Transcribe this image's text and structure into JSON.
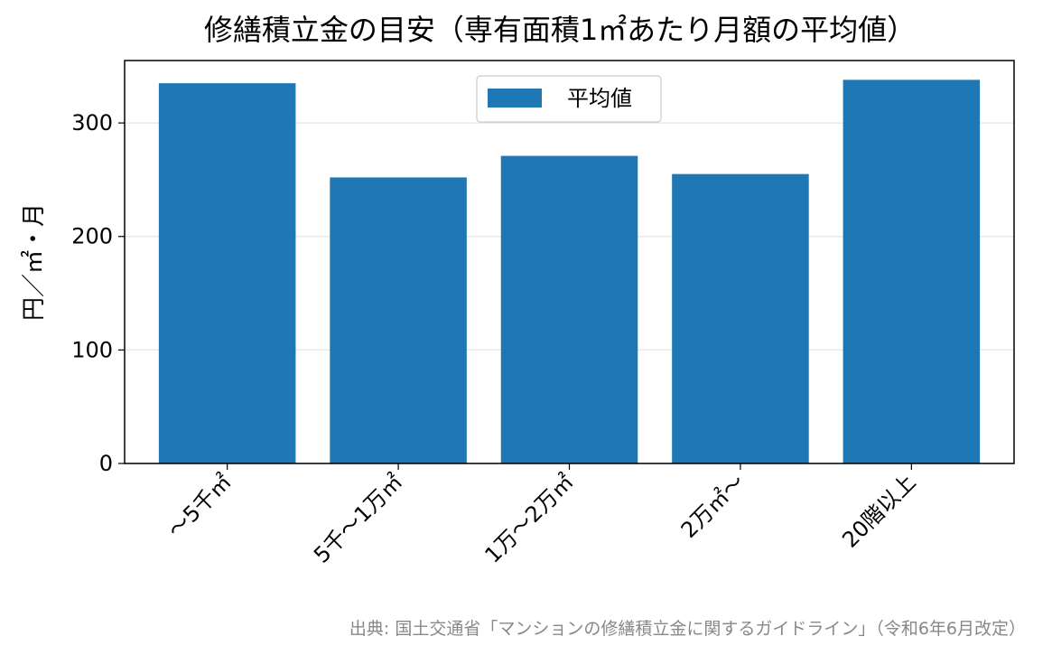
{
  "chart_data": {
    "type": "bar",
    "title": "修繕積立金の目安（専有面積1㎡あたり月額の平均値）",
    "xlabel": "",
    "ylabel": "円／㎡・月",
    "categories": [
      "〜5千㎡",
      "5千〜1万㎡",
      "1万〜2万㎡",
      "2万㎡〜",
      "20階以上"
    ],
    "series": [
      {
        "name": "平均値",
        "values": [
          335,
          252,
          271,
          255,
          338
        ]
      }
    ],
    "ylim": [
      0,
      355
    ],
    "yticks": [
      0,
      100,
      200,
      300
    ],
    "grid": "y",
    "legend_position": "top-center",
    "bar_color": "#1f77b4",
    "gridline_color": "#e5e5e5",
    "source_color": "#888888"
  },
  "source": "出典: 国土交通省「マンションの修繕積立金に関するガイドライン」（令和6年6月改定）"
}
